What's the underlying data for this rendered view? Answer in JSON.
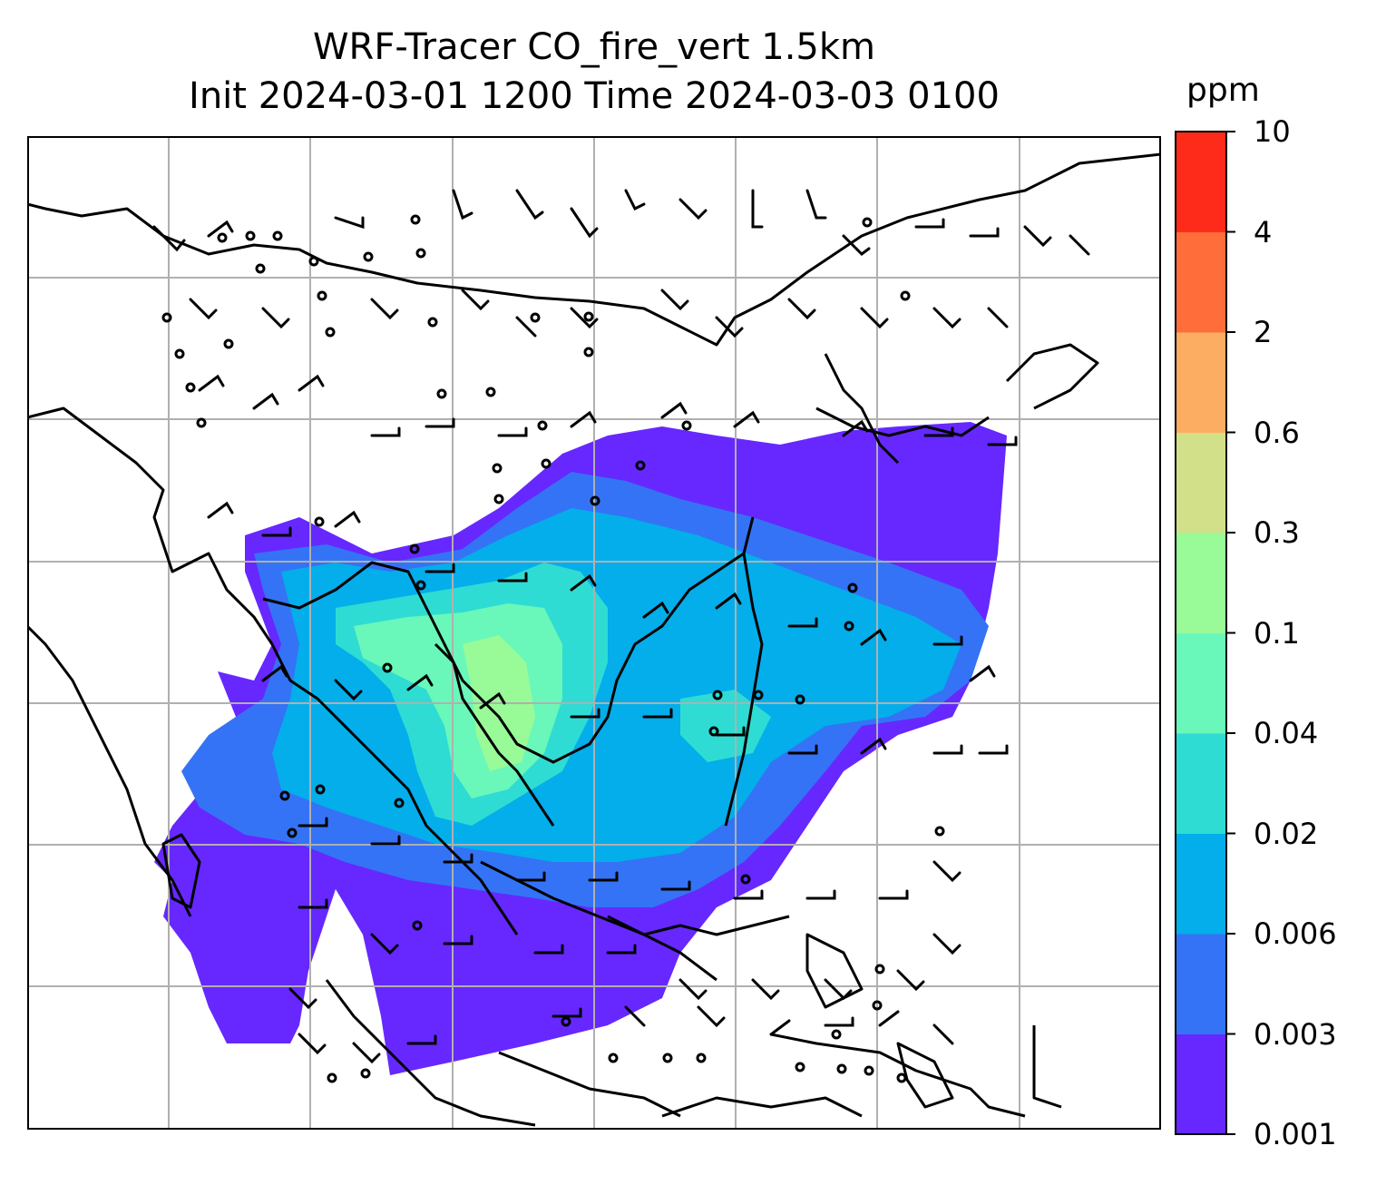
{
  "title": {
    "line1": "WRF-Tracer CO_fire_vert 1.5km",
    "line2": "Init 2024-03-01 1200 Time 2024-03-03 0100"
  },
  "colorbar": {
    "unit": "ppm",
    "ticks": [
      "0.001",
      "0.003",
      "0.006",
      "0.02",
      "0.04",
      "0.1",
      "0.3",
      "0.6",
      "2",
      "4",
      "10"
    ],
    "colors": [
      "#6628ff",
      "#3473f5",
      "#03aeeb",
      "#2fdcd3",
      "#69f8b9",
      "#98fb98",
      "#d1e089",
      "#fdad61",
      "#ff6e3a",
      "#ff2b1a"
    ]
  },
  "map": {
    "gridlines": true,
    "background": "#ffffff",
    "coastline_color": "#000000",
    "barb_color": "#000000"
  }
}
